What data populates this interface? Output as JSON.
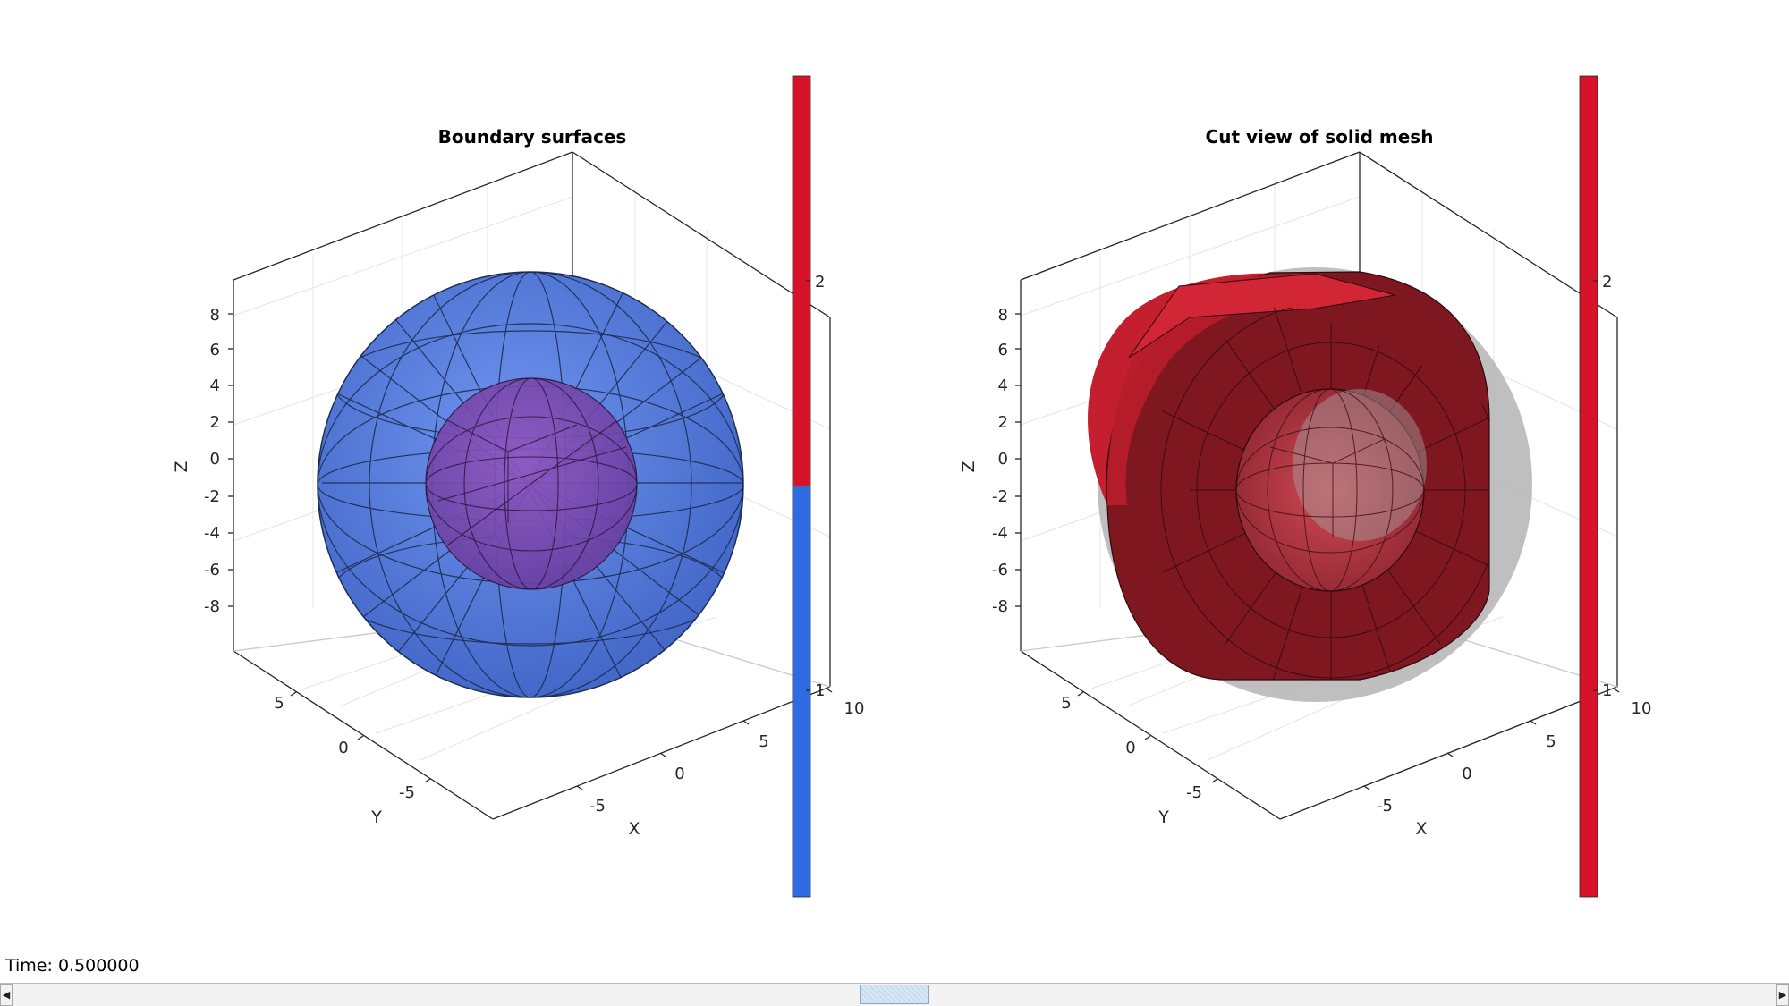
{
  "figure": {
    "status_text": "Time: 0.500000",
    "scrollbar": {
      "left_arrow": "◀",
      "right_arrow": "▶",
      "position": 0.5
    }
  },
  "chart_data": [
    {
      "type": "3d-mesh",
      "title": "Boundary surfaces",
      "xlabel": "X",
      "ylabel": "Y",
      "zlabel": "Z",
      "x_ticks": [
        "-5",
        "0",
        "5",
        "10"
      ],
      "y_ticks": [
        "-5",
        "0",
        "5"
      ],
      "z_ticks": [
        "8",
        "6",
        "4",
        "2",
        "0",
        "-2",
        "-4",
        "-6",
        "-8"
      ],
      "colorbar": {
        "ticks": [
          "2",
          "1"
        ],
        "colors": [
          "#d7132a",
          "#2f6be0"
        ]
      },
      "objects": [
        {
          "name": "outer boundary",
          "label": 1,
          "color": "#4a78e8",
          "shape": "sphere"
        },
        {
          "name": "inner boundary",
          "label": 2,
          "color": "#8a4fb0",
          "shape": "sphere"
        }
      ]
    },
    {
      "type": "3d-mesh",
      "title": "Cut view of solid mesh",
      "xlabel": "X",
      "ylabel": "Y",
      "zlabel": "Z",
      "x_ticks": [
        "-5",
        "0",
        "5",
        "10"
      ],
      "y_ticks": [
        "-5",
        "0",
        "5"
      ],
      "z_ticks": [
        "8",
        "6",
        "4",
        "2",
        "0",
        "-2",
        "-4",
        "-6",
        "-8"
      ],
      "colorbar": {
        "ticks": [
          "2",
          "1"
        ],
        "colors": [
          "#d7132a"
        ]
      },
      "objects": [
        {
          "name": "cut solid shell",
          "color": "#8c1a22",
          "shape": "hollow sphere cut"
        },
        {
          "name": "outer boundary shadow",
          "color": "#a8a8a8",
          "shape": "sphere"
        }
      ]
    }
  ]
}
